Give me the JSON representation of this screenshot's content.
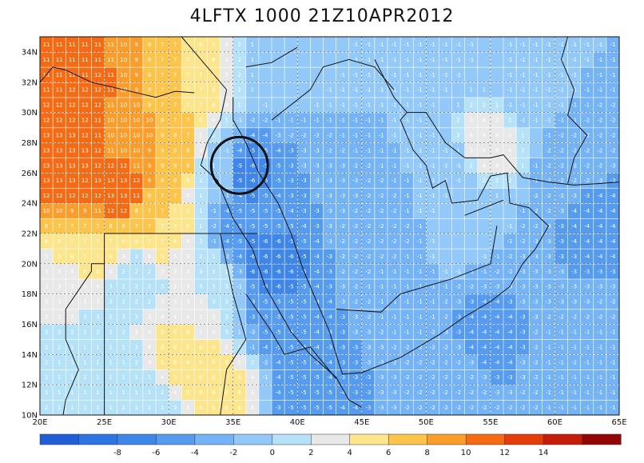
{
  "title": "4LFTX 1000 21Z10APR2012",
  "map": {
    "lon_range": [
      20,
      65
    ],
    "lat_range": [
      10,
      35
    ],
    "lon_ticks": [
      "20E",
      "25E",
      "30E",
      "35E",
      "40E",
      "45E",
      "50E",
      "55E",
      "60E",
      "65E"
    ],
    "lat_ticks": [
      "10N",
      "12N",
      "14N",
      "16N",
      "18N",
      "20N",
      "22N",
      "24N",
      "26N",
      "28N",
      "30N",
      "32N",
      "34N"
    ],
    "circle_center": {
      "lon": 35.5,
      "lat": 26.5
    },
    "circle_radius_deg": 2.2
  },
  "colorbar": {
    "labels": [
      "-8",
      "-6",
      "-4",
      "-2",
      "0",
      "2",
      "4",
      "6",
      "8",
      "10",
      "12",
      "14"
    ],
    "colors": [
      "#1f5fd6",
      "#2f74e3",
      "#3f86ea",
      "#559bf0",
      "#74b3f5",
      "#93c9f8",
      "#b5e2f8",
      "#e8e8e8",
      "#fde58b",
      "#fcc44a",
      "#fb9d2a",
      "#f66a13",
      "#e33d0c",
      "#c61d0a",
      "#930606"
    ]
  },
  "field_anchors": [
    {
      "lon": 22,
      "lat": 27,
      "value": 13
    },
    {
      "lon": 23,
      "lat": 31,
      "value": 12
    },
    {
      "lon": 26,
      "lat": 25,
      "value": 13
    },
    {
      "lon": 22,
      "lat": 33,
      "value": 11
    },
    {
      "lon": 27,
      "lat": 29,
      "value": 10
    },
    {
      "lon": 30,
      "lat": 27,
      "value": 9
    },
    {
      "lon": 31,
      "lat": 31,
      "value": 7
    },
    {
      "lon": 29,
      "lat": 23,
      "value": 7
    },
    {
      "lon": 24,
      "lat": 21,
      "value": 7
    },
    {
      "lon": 22,
      "lat": 18,
      "value": 3
    },
    {
      "lon": 27,
      "lat": 19,
      "value": 2
    },
    {
      "lon": 31,
      "lat": 14,
      "value": 6
    },
    {
      "lon": 34,
      "lat": 12,
      "value": 6
    },
    {
      "lon": 24,
      "lat": 13,
      "value": 1
    },
    {
      "lon": 28,
      "lat": 11,
      "value": 1
    },
    {
      "lon": 33,
      "lat": 18,
      "value": 3
    },
    {
      "lon": 34,
      "lat": 26,
      "value": 1
    },
    {
      "lon": 36,
      "lat": 26,
      "value": -6
    },
    {
      "lon": 36,
      "lat": 23,
      "value": -5
    },
    {
      "lon": 38,
      "lat": 20,
      "value": -6
    },
    {
      "lon": 39,
      "lat": 16,
      "value": -5
    },
    {
      "lon": 41,
      "lat": 12,
      "value": -5
    },
    {
      "lon": 44,
      "lat": 14,
      "value": -3
    },
    {
      "lon": 42,
      "lat": 25,
      "value": -3
    },
    {
      "lon": 46,
      "lat": 22,
      "value": -2
    },
    {
      "lon": 45,
      "lat": 30,
      "value": -1
    },
    {
      "lon": 40,
      "lat": 33,
      "value": 0
    },
    {
      "lon": 50,
      "lat": 33,
      "value": -1
    },
    {
      "lon": 51,
      "lat": 26,
      "value": -1
    },
    {
      "lon": 53,
      "lat": 23,
      "value": 0
    },
    {
      "lon": 55,
      "lat": 28,
      "value": 4
    },
    {
      "lon": 58,
      "lat": 31,
      "value": -1
    },
    {
      "lon": 61,
      "lat": 26,
      "value": -2
    },
    {
      "lon": 63,
      "lat": 23,
      "value": -4
    },
    {
      "lon": 60,
      "lat": 19,
      "value": -3
    },
    {
      "lon": 55,
      "lat": 15,
      "value": -4
    },
    {
      "lon": 52,
      "lat": 12,
      "value": -2
    },
    {
      "lon": 61,
      "lat": 14,
      "value": -1
    },
    {
      "lon": 63,
      "lat": 11,
      "value": -1
    },
    {
      "lon": 48,
      "lat": 18,
      "value": -1
    }
  ]
}
